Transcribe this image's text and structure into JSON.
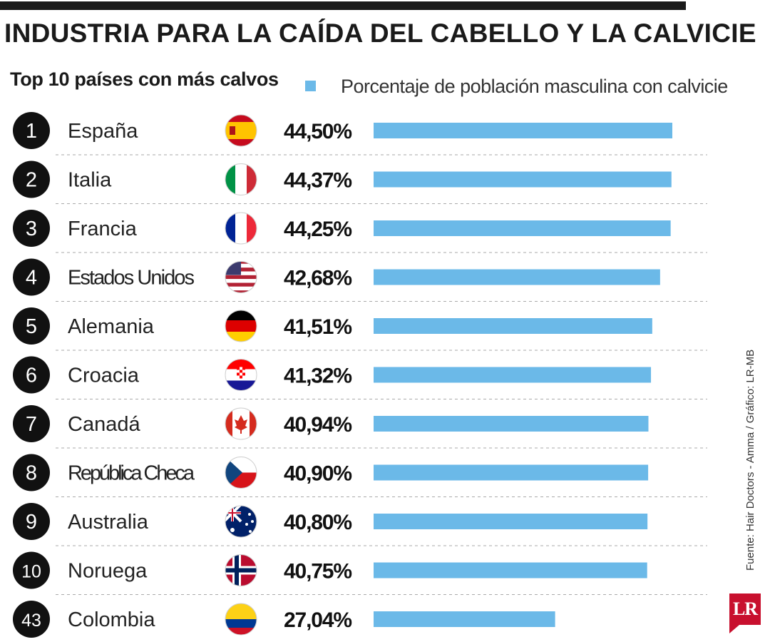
{
  "header": {
    "title": "INDUSTRIA PARA LA CAÍDA DEL CABELLO Y LA CALVICIE",
    "subtitle": "Top 10 países con más calvos",
    "legend_label": "Porcentaje de población masculina con calvicie"
  },
  "footer": {
    "source": "Fuente: Hair Doctors - Amma / Gráfico: LR-MB",
    "logo": "LR"
  },
  "colors": {
    "bar": "#6bb9e8",
    "rank_circle": "#111111",
    "divider": "#aaaaaa"
  },
  "chart_data": {
    "type": "bar",
    "orientation": "horizontal",
    "series": [
      {
        "name": "Porcentaje de población masculina con calvicie",
        "values": [
          44.5,
          44.37,
          44.25,
          42.68,
          41.51,
          41.32,
          40.94,
          40.9,
          40.8,
          40.75,
          27.04
        ]
      }
    ],
    "ranks": [
      "1",
      "2",
      "3",
      "4",
      "5",
      "6",
      "7",
      "8",
      "9",
      "10",
      "43"
    ],
    "categories": [
      "España",
      "Italia",
      "Francia",
      "Estados Unidos",
      "Alemania",
      "Croacia",
      "Canadá",
      "República Checa",
      "Australia",
      "Noruega",
      "Colombia"
    ],
    "value_labels": [
      "44,50%",
      "44,37%",
      "44,25%",
      "42,68%",
      "41,51%",
      "41,32%",
      "40,94%",
      "40,90%",
      "40,80%",
      "40,75%",
      "27,04%"
    ],
    "flags": [
      "flag-spain-icon",
      "flag-italy-icon",
      "flag-france-icon",
      "flag-usa-icon",
      "flag-germany-icon",
      "flag-croatia-icon",
      "flag-canada-icon",
      "flag-czech-republic-icon",
      "flag-australia-icon",
      "flag-norway-icon",
      "flag-colombia-icon"
    ],
    "xlim": [
      0,
      44.5
    ],
    "grid": false,
    "legend_position": "top-right"
  }
}
